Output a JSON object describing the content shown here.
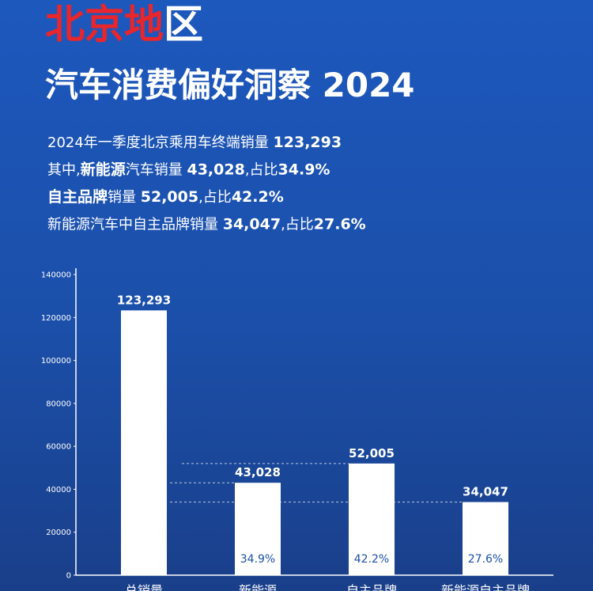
{
  "header": {
    "title": [
      {
        "text": "北京地",
        "color": "#e8262b"
      },
      {
        "text": "区",
        "color": "#ffffff"
      }
    ],
    "subtitle": "汽车消费偏好洞察 2024",
    "summary": [
      [
        {
          "text": "2024年一季度北京乘用车终端销量 ",
          "bold": false
        },
        {
          "text": "123,293",
          "bold": true
        }
      ],
      [
        {
          "text": "其中,",
          "bold": false
        },
        {
          "text": "新能源",
          "bold": true
        },
        {
          "text": "汽车销量 ",
          "bold": false
        },
        {
          "text": "43,028",
          "bold": true
        },
        {
          "text": ",占比",
          "bold": false
        },
        {
          "text": "34.9%",
          "bold": true
        }
      ],
      [
        {
          "text": "自主品牌",
          "bold": true
        },
        {
          "text": "销量 ",
          "bold": false
        },
        {
          "text": "52,005",
          "bold": true
        },
        {
          "text": ",占比",
          "bold": false
        },
        {
          "text": "42.2%",
          "bold": true
        }
      ],
      [
        {
          "text": "新能源汽车中自主品牌销量 ",
          "bold": false
        },
        {
          "text": "34,047",
          "bold": true
        },
        {
          "text": ",占比",
          "bold": false
        },
        {
          "text": "27.6%",
          "bold": true
        }
      ]
    ]
  },
  "chart_data": {
    "type": "bar",
    "categories": [
      "总销量",
      "新能源",
      "自主品牌",
      "新能源自主品牌"
    ],
    "values": [
      123293,
      43028,
      52005,
      34047
    ],
    "value_labels": [
      "123,293",
      "43,028",
      "52,005",
      "34,047"
    ],
    "share_labels": [
      null,
      "34.9%",
      "42.2%",
      "27.6%"
    ],
    "color": "#ffffff",
    "ylim": [
      0,
      140000
    ],
    "yticks": [
      0,
      20000,
      40000,
      60000,
      80000,
      100000,
      120000,
      140000
    ]
  }
}
